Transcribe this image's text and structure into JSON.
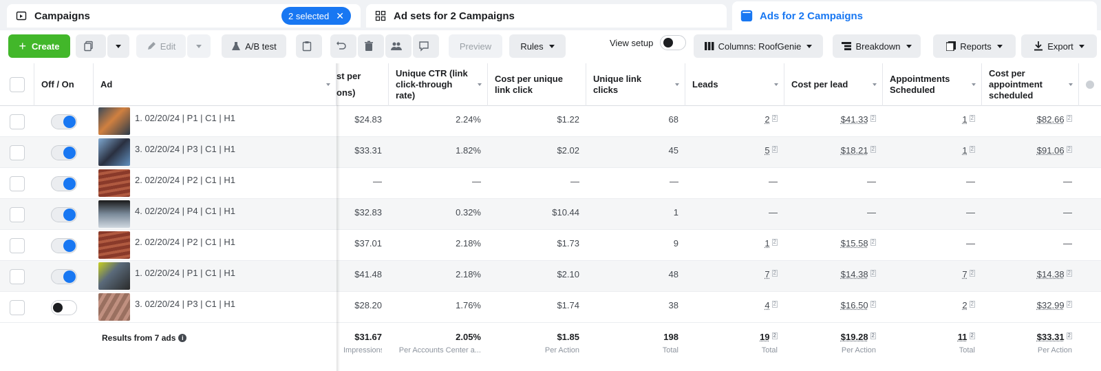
{
  "tabs": {
    "campaigns": "Campaigns",
    "selected": "2 selected",
    "adsets": "Ad sets for 2 Campaigns",
    "ads": "Ads for 2 Campaigns"
  },
  "toolbar": {
    "create": "Create",
    "edit": "Edit",
    "ab_test": "A/B test",
    "preview": "Preview",
    "rules": "Rules",
    "view_setup": "View setup",
    "columns": "Columns: RoofGenie",
    "breakdown": "Breakdown",
    "reports": "Reports",
    "export": "Export"
  },
  "headers": {
    "off_on": "Off / On",
    "ad": "Ad",
    "cost_per_impr_top": "st per",
    "cost_per_impr_bottom": "ons)",
    "unique_ctr": "Unique CTR (link click-through rate)",
    "cost_unique_click": "Cost per unique link click",
    "unique_clicks": "Unique link clicks",
    "leads": "Leads",
    "cost_per_lead": "Cost per lead",
    "appointments": "Appointments Scheduled",
    "cost_per_appt": "Cost per appointment scheduled"
  },
  "rows": [
    {
      "name": "1. 02/20/24 | P1 | C1 | H1",
      "on": true,
      "cpm": "$24.83",
      "ctr": "2.24%",
      "cpc": "$1.22",
      "clicks": "68",
      "leads": "2",
      "cpl": "$41.33",
      "appts": "1",
      "cpa": "$82.66"
    },
    {
      "name": "3. 02/20/24 | P3 | C1 | H1",
      "on": true,
      "cpm": "$33.31",
      "ctr": "1.82%",
      "cpc": "$2.02",
      "clicks": "45",
      "leads": "5",
      "cpl": "$18.21",
      "appts": "1",
      "cpa": "$91.06"
    },
    {
      "name": "2. 02/20/24 | P2 | C1 | H1",
      "on": true,
      "cpm": "—",
      "ctr": "—",
      "cpc": "—",
      "clicks": "—",
      "leads": "—",
      "cpl": "—",
      "appts": "—",
      "cpa": "—"
    },
    {
      "name": "4. 02/20/24 | P4 | C1 | H1",
      "on": true,
      "cpm": "$32.83",
      "ctr": "0.32%",
      "cpc": "$10.44",
      "clicks": "1",
      "leads": "—",
      "cpl": "—",
      "appts": "—",
      "cpa": "—"
    },
    {
      "name": "2. 02/20/24 | P2 | C1 | H1",
      "on": true,
      "cpm": "$37.01",
      "ctr": "2.18%",
      "cpc": "$1.73",
      "clicks": "9",
      "leads": "1",
      "cpl": "$15.58",
      "appts": "—",
      "cpa": "—"
    },
    {
      "name": "1. 02/20/24 | P1 | C1 | H1",
      "on": true,
      "cpm": "$41.48",
      "ctr": "2.18%",
      "cpc": "$2.10",
      "clicks": "48",
      "leads": "7",
      "cpl": "$14.38",
      "appts": "7",
      "cpa": "$14.38"
    },
    {
      "name": "3. 02/20/24 | P3 | C1 | H1",
      "on": false,
      "cpm": "$28.20",
      "ctr": "1.76%",
      "cpc": "$1.74",
      "clicks": "38",
      "leads": "4",
      "cpl": "$16.50",
      "appts": "2",
      "cpa": "$32.99"
    }
  ],
  "footer": {
    "label": "Results from 7 ads",
    "cpm": "$31.67",
    "cpm_sub": "Impressions",
    "ctr": "2.05%",
    "ctr_sub": "Per Accounts Center a...",
    "cpc": "$1.85",
    "cpc_sub": "Per Action",
    "clicks": "198",
    "clicks_sub": "Total",
    "leads": "19",
    "leads_sub": "Total",
    "cpl": "$19.28",
    "cpl_sub": "Per Action",
    "appts": "11",
    "appts_sub": "Total",
    "cpa": "$33.31",
    "cpa_sub": "Per Action"
  },
  "colors": {
    "accent": "#1877f2",
    "create": "#42b72a"
  }
}
